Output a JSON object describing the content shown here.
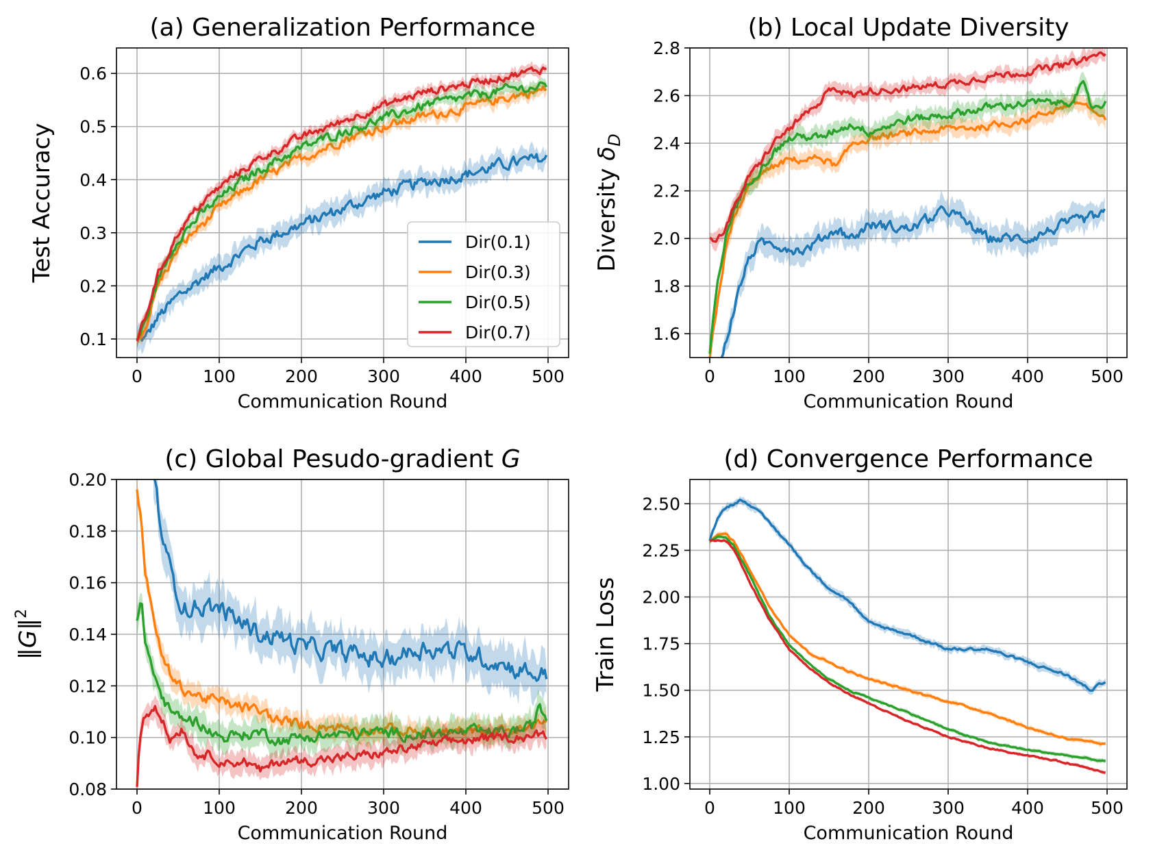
{
  "chart_data": [
    {
      "type": "line",
      "panel": "a",
      "title": "(a) Generalization Performance",
      "xlabel": "Communication Round",
      "ylabel": "Test Accuracy",
      "xlim": [
        -25,
        525
      ],
      "ylim": [
        0.065,
        0.648
      ],
      "xticks": [
        0,
        100,
        200,
        300,
        400,
        500
      ],
      "yticks": [
        0.1,
        0.2,
        0.3,
        0.4,
        0.5,
        0.6
      ],
      "ytick_labels": [
        "0.1",
        "0.2",
        "0.3",
        "0.4",
        "0.5",
        "0.6"
      ],
      "grid": true,
      "legend": "lower-right",
      "series": [
        {
          "name": "Dir(0.1)",
          "x": [
            0,
            10,
            25,
            50,
            75,
            100,
            125,
            150,
            175,
            200,
            250,
            300,
            350,
            400,
            450,
            498
          ],
          "values": [
            0.1,
            0.1,
            0.14,
            0.18,
            0.21,
            0.235,
            0.26,
            0.285,
            0.3,
            0.315,
            0.345,
            0.375,
            0.395,
            0.41,
            0.43,
            0.44
          ],
          "noise": 0.009,
          "band": 0.02
        },
        {
          "name": "Dir(0.3)",
          "x": [
            0,
            10,
            25,
            50,
            75,
            100,
            125,
            150,
            175,
            200,
            250,
            300,
            350,
            400,
            450,
            498
          ],
          "values": [
            0.1,
            0.12,
            0.2,
            0.27,
            0.31,
            0.345,
            0.375,
            0.4,
            0.42,
            0.44,
            0.475,
            0.5,
            0.52,
            0.535,
            0.555,
            0.57
          ],
          "noise": 0.007,
          "band": 0.012
        },
        {
          "name": "Dir(0.5)",
          "x": [
            0,
            10,
            25,
            50,
            75,
            100,
            125,
            150,
            175,
            200,
            250,
            300,
            350,
            400,
            450,
            498
          ],
          "values": [
            0.1,
            0.13,
            0.21,
            0.29,
            0.33,
            0.365,
            0.395,
            0.42,
            0.44,
            0.46,
            0.49,
            0.515,
            0.54,
            0.555,
            0.57,
            0.575
          ],
          "noise": 0.007,
          "band": 0.012
        },
        {
          "name": "Dir(0.7)",
          "x": [
            0,
            10,
            25,
            50,
            75,
            100,
            125,
            150,
            175,
            200,
            250,
            300,
            350,
            400,
            450,
            498
          ],
          "values": [
            0.1,
            0.14,
            0.22,
            0.3,
            0.35,
            0.385,
            0.415,
            0.44,
            0.46,
            0.48,
            0.51,
            0.54,
            0.565,
            0.58,
            0.595,
            0.61
          ],
          "noise": 0.006,
          "band": 0.01
        }
      ]
    },
    {
      "type": "line",
      "panel": "b",
      "title": "(b) Local Update Diversity",
      "xlabel": "Communication Round",
      "ylabel": "Diversity",
      "ylabel_symbol": "δ",
      "ylabel_subscript": "D",
      "xlim": [
        -25,
        525
      ],
      "ylim": [
        1.5,
        2.8
      ],
      "xticks": [
        0,
        100,
        200,
        300,
        400,
        500
      ],
      "yticks": [
        1.6,
        1.8,
        2.0,
        2.2,
        2.4,
        2.6,
        2.8
      ],
      "ytick_labels": [
        "1.6",
        "1.8",
        "2.0",
        "2.2",
        "2.4",
        "2.6",
        "2.8"
      ],
      "grid": true,
      "series": [
        {
          "name": "Dir(0.1)",
          "x": [
            15,
            20,
            30,
            40,
            50,
            60,
            80,
            100,
            120,
            140,
            160,
            180,
            200,
            250,
            300,
            350,
            400,
            450,
            498
          ],
          "values": [
            1.5,
            1.56,
            1.7,
            1.82,
            1.92,
            1.97,
            1.98,
            1.96,
            1.95,
            2.0,
            2.04,
            2.0,
            2.06,
            2.04,
            2.12,
            2.0,
            2.0,
            2.06,
            2.1
          ],
          "noise": 0.018,
          "band": 0.05
        },
        {
          "name": "Dir(0.3)",
          "x": [
            0,
            10,
            20,
            30,
            40,
            50,
            60,
            80,
            100,
            120,
            140,
            160,
            180,
            200,
            250,
            300,
            350,
            400,
            450,
            470,
            498
          ],
          "values": [
            1.5,
            1.74,
            1.95,
            2.08,
            2.15,
            2.22,
            2.26,
            2.3,
            2.33,
            2.33,
            2.34,
            2.3,
            2.4,
            2.42,
            2.44,
            2.46,
            2.47,
            2.5,
            2.56,
            2.57,
            2.49
          ],
          "noise": 0.012,
          "band": 0.035
        },
        {
          "name": "Dir(0.5)",
          "x": [
            0,
            10,
            20,
            30,
            40,
            50,
            60,
            80,
            100,
            120,
            140,
            160,
            180,
            200,
            250,
            300,
            350,
            400,
            450,
            470,
            480,
            498
          ],
          "values": [
            1.52,
            1.82,
            2.0,
            2.12,
            2.18,
            2.24,
            2.28,
            2.36,
            2.42,
            2.43,
            2.42,
            2.46,
            2.48,
            2.45,
            2.5,
            2.52,
            2.55,
            2.57,
            2.57,
            2.64,
            2.55,
            2.57
          ],
          "noise": 0.014,
          "band": 0.035
        },
        {
          "name": "Dir(0.7)",
          "x": [
            0,
            10,
            20,
            30,
            40,
            50,
            60,
            80,
            100,
            120,
            140,
            150,
            160,
            180,
            200,
            250,
            300,
            350,
            400,
            450,
            498
          ],
          "values": [
            2.0,
            2.0,
            2.05,
            2.12,
            2.2,
            2.26,
            2.3,
            2.4,
            2.46,
            2.52,
            2.56,
            2.64,
            2.63,
            2.6,
            2.62,
            2.63,
            2.65,
            2.68,
            2.7,
            2.73,
            2.78
          ],
          "noise": 0.012,
          "band": 0.03
        }
      ]
    },
    {
      "type": "line",
      "panel": "c",
      "title": "(c) Global Pesudo-gradient ",
      "title_italic": "G",
      "xlabel": "Communication Round",
      "ylabel": "‖G‖",
      "ylabel_sup": "2",
      "xlim": [
        -25,
        525
      ],
      "ylim": [
        0.08,
        0.2
      ],
      "xticks": [
        0,
        100,
        200,
        300,
        400,
        500
      ],
      "yticks": [
        0.08,
        0.1,
        0.12,
        0.14,
        0.16,
        0.18,
        0.2
      ],
      "ytick_labels": [
        "0.08",
        "0.10",
        "0.12",
        "0.14",
        "0.16",
        "0.18",
        "0.20"
      ],
      "grid": true,
      "series": [
        {
          "name": "Dir(0.1)",
          "x": [
            20,
            30,
            40,
            50,
            60,
            80,
            100,
            125,
            150,
            175,
            200,
            250,
            300,
            350,
            400,
            450,
            480,
            498
          ],
          "values": [
            0.2,
            0.18,
            0.165,
            0.155,
            0.15,
            0.151,
            0.15,
            0.145,
            0.14,
            0.139,
            0.135,
            0.133,
            0.13,
            0.135,
            0.133,
            0.128,
            0.125,
            0.124
          ],
          "noise": 0.003,
          "band": 0.008
        },
        {
          "name": "Dir(0.3)",
          "x": [
            0,
            5,
            10,
            20,
            30,
            40,
            50,
            75,
            100,
            125,
            150,
            175,
            200,
            250,
            300,
            350,
            400,
            450,
            480,
            498
          ],
          "values": [
            0.196,
            0.185,
            0.165,
            0.145,
            0.132,
            0.125,
            0.12,
            0.116,
            0.114,
            0.112,
            0.11,
            0.106,
            0.105,
            0.104,
            0.103,
            0.102,
            0.102,
            0.103,
            0.103,
            0.108
          ],
          "noise": 0.0018,
          "band": 0.004
        },
        {
          "name": "Dir(0.5)",
          "x": [
            0,
            5,
            10,
            20,
            30,
            40,
            50,
            75,
            100,
            125,
            150,
            175,
            200,
            250,
            300,
            350,
            400,
            450,
            480,
            490,
            498
          ],
          "values": [
            0.145,
            0.152,
            0.138,
            0.125,
            0.116,
            0.11,
            0.108,
            0.106,
            0.1,
            0.101,
            0.102,
            0.099,
            0.1,
            0.101,
            0.102,
            0.101,
            0.102,
            0.102,
            0.104,
            0.112,
            0.107
          ],
          "noise": 0.0018,
          "band": 0.005
        },
        {
          "name": "Dir(0.7)",
          "x": [
            0,
            3,
            8,
            15,
            22,
            30,
            40,
            55,
            70,
            90,
            110,
            130,
            150,
            175,
            200,
            250,
            300,
            350,
            400,
            450,
            498
          ],
          "values": [
            0.081,
            0.1,
            0.108,
            0.11,
            0.113,
            0.108,
            0.099,
            0.104,
            0.094,
            0.093,
            0.09,
            0.091,
            0.087,
            0.091,
            0.091,
            0.092,
            0.094,
            0.097,
            0.099,
            0.1,
            0.101
          ],
          "noise": 0.0015,
          "band": 0.004
        }
      ]
    },
    {
      "type": "line",
      "panel": "d",
      "title": "(d) Convergence Performance",
      "xlabel": "Communication Round",
      "ylabel": "Train Loss",
      "xlim": [
        -25,
        525
      ],
      "ylim": [
        0.97,
        2.63
      ],
      "xticks": [
        0,
        100,
        200,
        300,
        400,
        500
      ],
      "yticks": [
        1.0,
        1.25,
        1.5,
        1.75,
        2.0,
        2.25,
        2.5
      ],
      "ytick_labels": [
        "1.00",
        "1.25",
        "1.50",
        "1.75",
        "2.00",
        "2.25",
        "2.50"
      ],
      "grid": true,
      "series": [
        {
          "name": "Dir(0.1)",
          "x": [
            0,
            10,
            20,
            30,
            40,
            50,
            75,
            100,
            125,
            150,
            175,
            200,
            250,
            300,
            350,
            400,
            450,
            480,
            498
          ],
          "values": [
            2.3,
            2.43,
            2.48,
            2.5,
            2.52,
            2.5,
            2.4,
            2.28,
            2.15,
            2.05,
            1.98,
            1.86,
            1.8,
            1.72,
            1.72,
            1.65,
            1.58,
            1.5,
            1.55
          ],
          "noise": 0.006,
          "band": 0.02
        },
        {
          "name": "Dir(0.3)",
          "x": [
            0,
            10,
            20,
            30,
            50,
            75,
            100,
            125,
            150,
            175,
            200,
            250,
            300,
            350,
            400,
            450,
            480,
            498
          ],
          "values": [
            2.3,
            2.33,
            2.34,
            2.3,
            2.15,
            1.95,
            1.8,
            1.7,
            1.65,
            1.6,
            1.56,
            1.5,
            1.44,
            1.38,
            1.3,
            1.24,
            1.22,
            1.21
          ],
          "noise": 0.004,
          "band": 0.012
        },
        {
          "name": "Dir(0.5)",
          "x": [
            0,
            10,
            20,
            30,
            50,
            75,
            100,
            125,
            150,
            175,
            200,
            250,
            300,
            350,
            400,
            450,
            480,
            498
          ],
          "values": [
            2.3,
            2.32,
            2.32,
            2.28,
            2.12,
            1.9,
            1.74,
            1.64,
            1.56,
            1.5,
            1.46,
            1.38,
            1.29,
            1.22,
            1.18,
            1.15,
            1.13,
            1.12
          ],
          "noise": 0.003,
          "band": 0.01
        },
        {
          "name": "Dir(0.7)",
          "x": [
            0,
            10,
            20,
            30,
            50,
            75,
            100,
            125,
            150,
            175,
            200,
            250,
            300,
            350,
            400,
            450,
            480,
            498
          ],
          "values": [
            2.3,
            2.3,
            2.3,
            2.26,
            2.08,
            1.88,
            1.72,
            1.62,
            1.54,
            1.48,
            1.43,
            1.33,
            1.25,
            1.19,
            1.15,
            1.11,
            1.08,
            1.06
          ],
          "noise": 0.003,
          "band": 0.008
        }
      ]
    }
  ],
  "colors": {
    "Dir(0.1)": "#1f77b4",
    "Dir(0.3)": "#ff7f0e",
    "Dir(0.5)": "#2ca02c",
    "Dir(0.7)": "#d62728"
  },
  "legend_entries": [
    "Dir(0.1)",
    "Dir(0.3)",
    "Dir(0.5)",
    "Dir(0.7)"
  ]
}
